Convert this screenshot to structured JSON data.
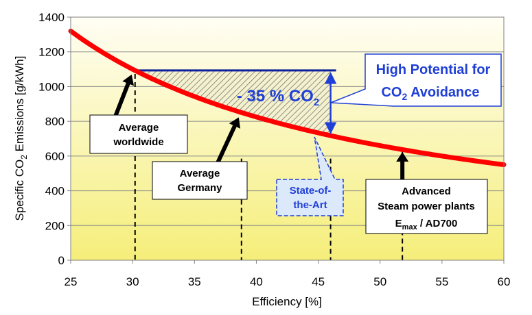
{
  "chart_data": {
    "type": "line",
    "xlabel": "Efficiency [%]",
    "ylabel": {
      "pre": "Specific CO",
      "sub": "2",
      "post": " Emissions [g/kWh]"
    },
    "xlim": [
      25,
      60
    ],
    "ylim": [
      0,
      1400
    ],
    "xticks": [
      "25",
      "30",
      "35",
      "40",
      "45",
      "50",
      "55",
      "60"
    ],
    "yticks": [
      "0",
      "200",
      "400",
      "600",
      "800",
      "1000",
      "1200",
      "1400"
    ],
    "grid": true,
    "series": [
      {
        "x": [
          25,
          27.5,
          30,
          32.5,
          35,
          37.5,
          40,
          42.5,
          45,
          47.5,
          50,
          52.5,
          55,
          57.5,
          60
        ],
        "y": [
          1320,
          1200,
          1100,
          1015,
          943,
          880,
          825,
          776,
          733,
          695,
          660,
          629,
          600,
          574,
          550
        ],
        "color": "#ff0000"
      }
    ],
    "markers": [
      {
        "x": 30.2,
        "label_lines": [
          "Average",
          "worldwide"
        ]
      },
      {
        "x": 38.8,
        "label_lines": [
          "Average",
          "Germany"
        ]
      },
      {
        "x": 46,
        "label_lines": [
          "State-of-",
          "the-Art"
        ]
      },
      {
        "x": 51.8,
        "label_lines": [
          "Advanced",
          "Steam power plants"
        ],
        "formula": {
          "main": "E",
          "sub": "max",
          "post": " / AD700"
        }
      }
    ],
    "reduction_label": {
      "pre": "- 35 % CO",
      "sub": "2"
    },
    "potential_label": {
      "line1": "High Potential for",
      "line2_pre": "CO",
      "line2_sub": "2",
      "line2_post": " Avoidance"
    },
    "colors": {
      "curve": "#ff0000",
      "callout_blue": "#1f3fd6",
      "state_box_fill": "#dce9fb",
      "plot_top": "#fffef4",
      "plot_bottom": "#f5ee7a"
    }
  }
}
